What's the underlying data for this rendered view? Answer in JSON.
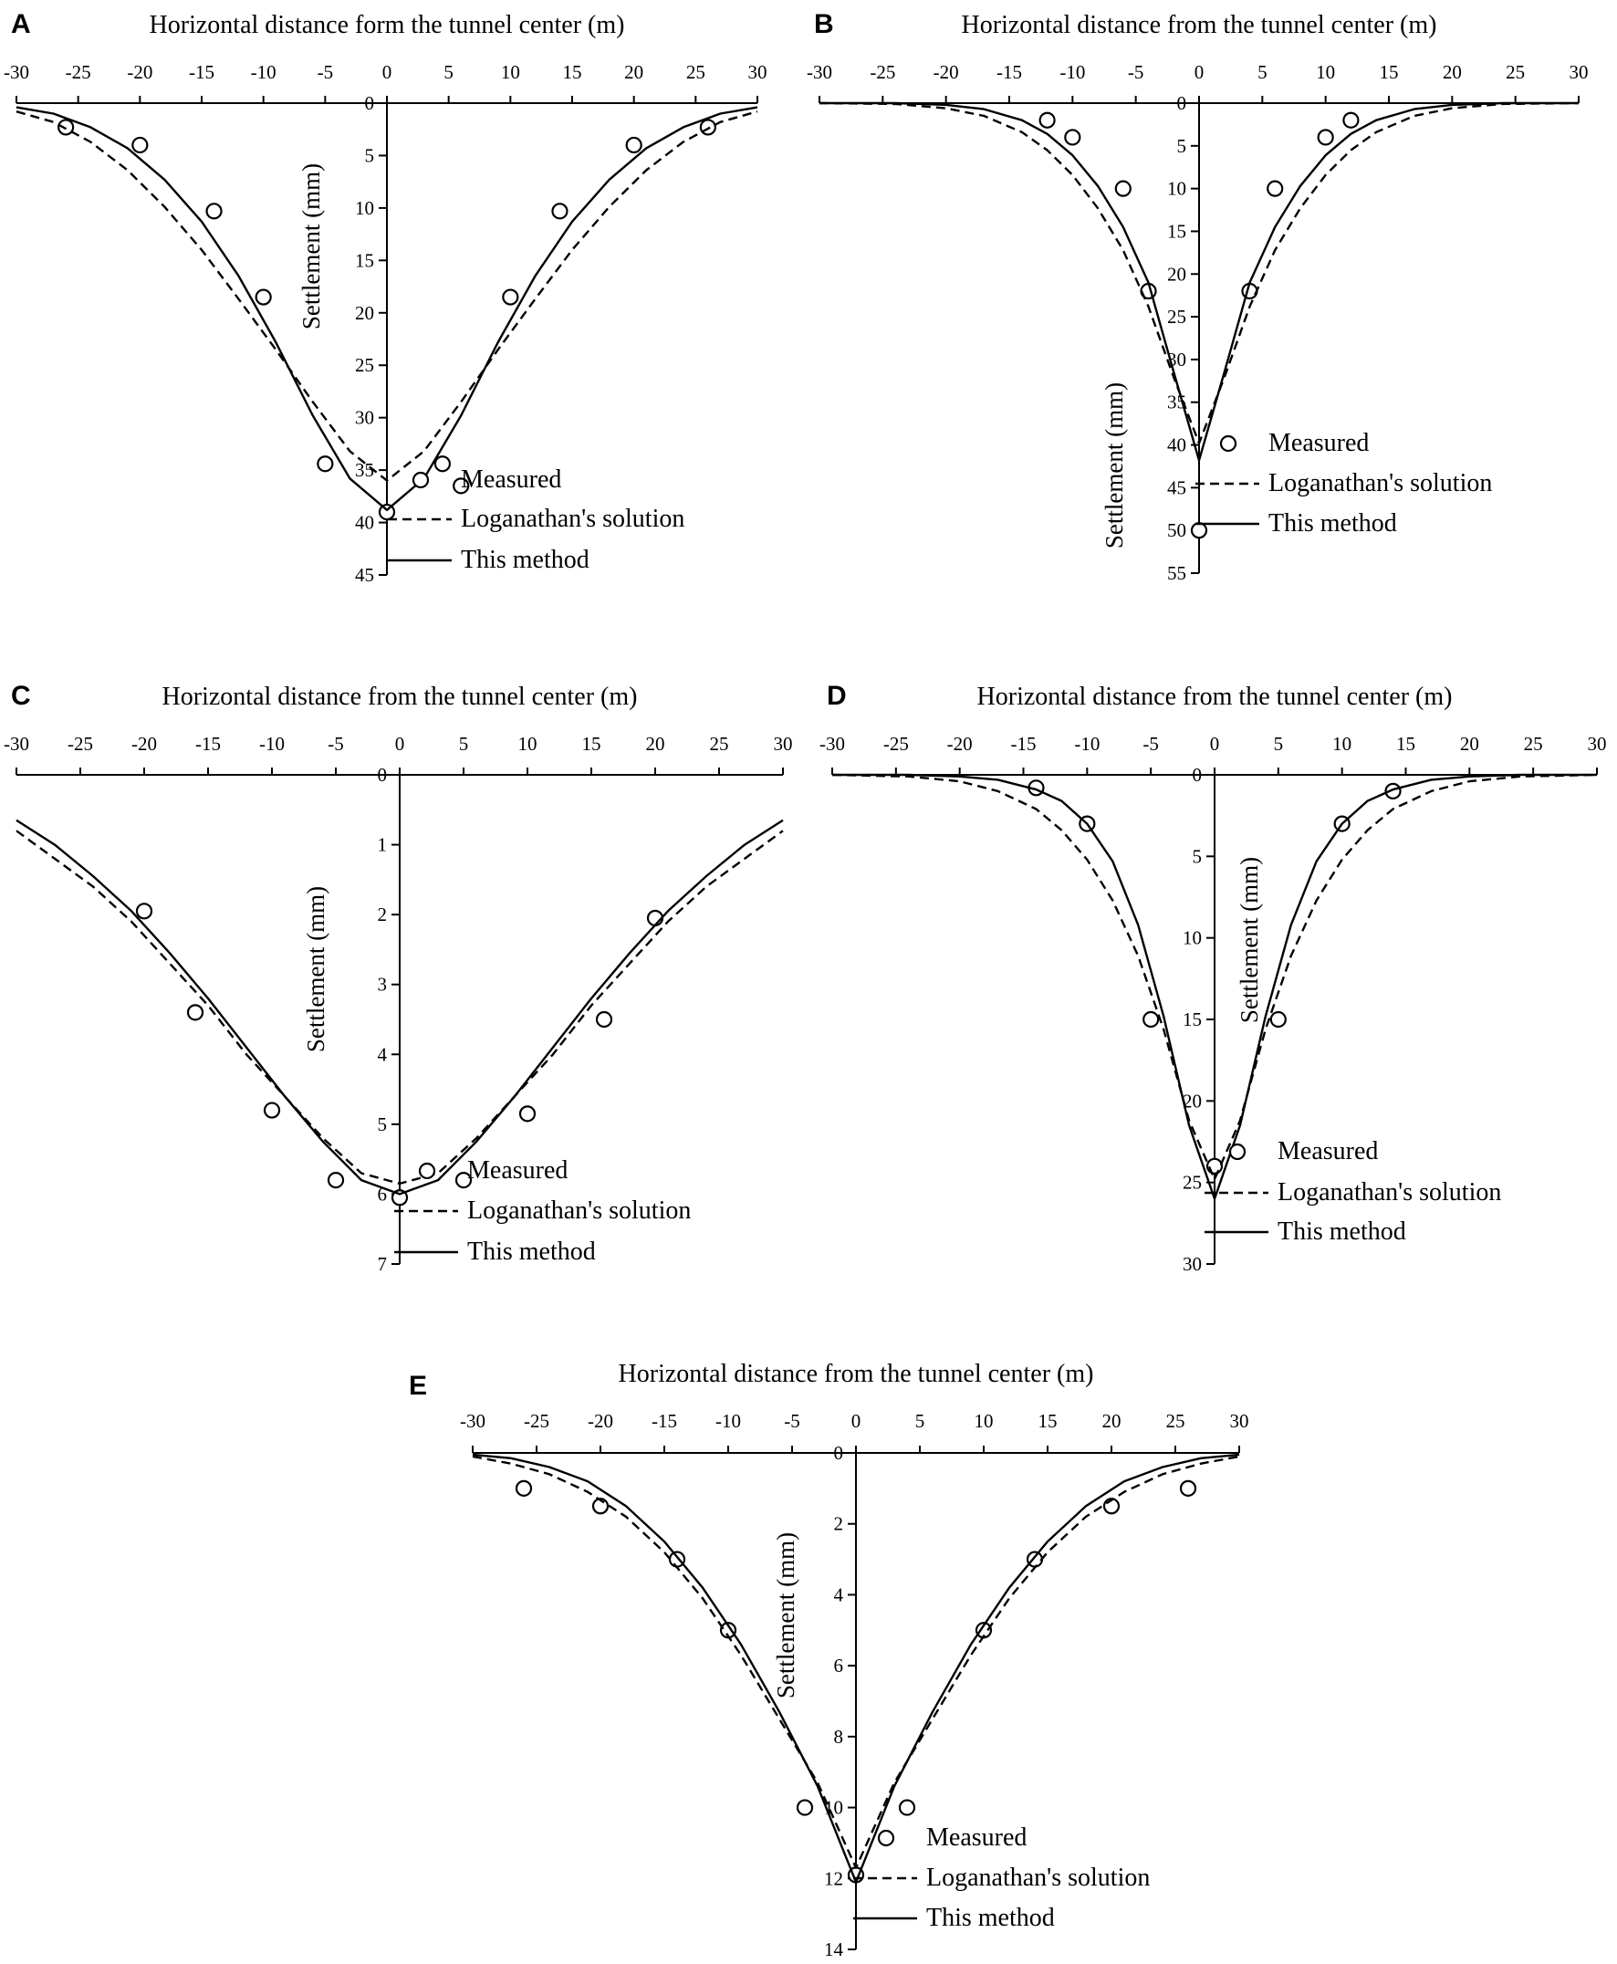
{
  "figure": {
    "legend_labels": {
      "measured": "Measured",
      "loganathan": "Loganathan's solution",
      "this_method": "This method"
    },
    "colors": {
      "ink": "#000000",
      "marker_fill": "#ffffff"
    }
  },
  "chart_data": [
    {
      "panel": "A",
      "type": "line",
      "title": "Horizontal distance form the tunnel center (m)",
      "xlabel": "Horizontal distance form the tunnel center (m)",
      "ylabel": "Settlement (mm)",
      "xlim": [
        -30,
        30
      ],
      "xticks": [
        -30,
        -25,
        -20,
        -15,
        -10,
        -5,
        0,
        5,
        10,
        15,
        20,
        25,
        30
      ],
      "ylim": [
        0,
        45
      ],
      "yticks": [
        0,
        5,
        10,
        15,
        20,
        25,
        30,
        35,
        40,
        45
      ],
      "y_inverted": true,
      "grid": false,
      "legend": "bottom-right",
      "series": [
        {
          "name": "Measured",
          "style": "markers",
          "x": [
            -26,
            -20,
            -14,
            -10,
            -5,
            0,
            4.5,
            6,
            10,
            14,
            20,
            26
          ],
          "y": [
            2.3,
            4,
            10.3,
            18.5,
            34.4,
            39,
            34.4,
            36.5,
            18.5,
            10.3,
            4,
            2.3
          ]
        },
        {
          "name": "Loganathan's solution",
          "style": "dashed",
          "x": [
            -30,
            -27,
            -24,
            -21,
            -18,
            -15,
            -12,
            -9,
            -6,
            -3,
            0,
            3,
            6,
            9,
            12,
            15,
            18,
            21,
            24,
            27,
            30
          ],
          "y": [
            0.8,
            1.8,
            3.7,
            6.4,
            9.9,
            14.0,
            18.7,
            23.5,
            28.5,
            33.2,
            36.0,
            33.2,
            28.5,
            23.5,
            18.7,
            14.0,
            9.9,
            6.4,
            3.7,
            1.8,
            0.8
          ]
        },
        {
          "name": "This method",
          "style": "solid",
          "x": [
            -30,
            -27,
            -24,
            -21,
            -18,
            -15,
            -12,
            -9,
            -6,
            -3,
            0,
            3,
            6,
            9,
            12,
            15,
            18,
            21,
            24,
            27,
            30
          ],
          "y": [
            0.4,
            1.0,
            2.3,
            4.3,
            7.3,
            11.3,
            16.5,
            22.8,
            29.8,
            35.8,
            38.8,
            35.8,
            29.8,
            22.8,
            16.5,
            11.3,
            7.3,
            4.3,
            2.3,
            1.0,
            0.4
          ]
        }
      ]
    },
    {
      "panel": "B",
      "type": "line",
      "title": "Horizontal distance from the tunnel center (m)",
      "xlabel": "Horizontal distance from the tunnel center (m)",
      "ylabel": "Settlement (mm)",
      "xlim": [
        -30,
        30
      ],
      "xticks": [
        -30,
        -25,
        -20,
        -15,
        -10,
        -5,
        0,
        5,
        10,
        15,
        20,
        25,
        30
      ],
      "ylim": [
        0,
        55
      ],
      "yticks": [
        0,
        5,
        10,
        15,
        20,
        25,
        30,
        35,
        40,
        45,
        50,
        55
      ],
      "y_inverted": true,
      "grid": false,
      "legend": "bottom-right",
      "series": [
        {
          "name": "Measured",
          "style": "markers",
          "x": [
            -12,
            -10,
            -6,
            -4,
            0,
            4,
            6,
            10,
            12
          ],
          "y": [
            2,
            4,
            10,
            22,
            50,
            22,
            10,
            4,
            2
          ]
        },
        {
          "name": "Loganathan's solution",
          "style": "dashed",
          "x": [
            -30,
            -24,
            -20,
            -17,
            -14,
            -12,
            -10,
            -8,
            -6,
            -4,
            -2,
            0,
            2,
            4,
            6,
            8,
            10,
            12,
            14,
            17,
            20,
            24,
            30
          ],
          "y": [
            0.0,
            0.1,
            0.6,
            1.5,
            3.4,
            5.5,
            8.4,
            12.3,
            17.2,
            23.8,
            32.1,
            39.8,
            32.1,
            23.8,
            17.2,
            12.3,
            8.4,
            5.5,
            3.4,
            1.5,
            0.6,
            0.1,
            0.0
          ]
        },
        {
          "name": "This method",
          "style": "solid",
          "x": [
            -30,
            -24,
            -20,
            -17,
            -14,
            -12,
            -10,
            -8,
            -6,
            -4,
            -2,
            0,
            2,
            4,
            6,
            8,
            10,
            12,
            14,
            17,
            20,
            24,
            30
          ],
          "y": [
            0.0,
            0.0,
            0.2,
            0.7,
            2.0,
            3.6,
            6.1,
            9.7,
            14.5,
            21.0,
            31.5,
            41.8,
            31.5,
            21.0,
            14.5,
            9.7,
            6.1,
            3.6,
            2.0,
            0.7,
            0.2,
            0.0,
            0.0
          ]
        }
      ]
    },
    {
      "panel": "C",
      "type": "line",
      "title": "Horizontal distance from the tunnel center (m)",
      "xlabel": "Horizontal distance from the tunnel center (m)",
      "ylabel": "Settlement (mm)",
      "xlim": [
        -30,
        30
      ],
      "xticks": [
        -30,
        -25,
        -20,
        -15,
        -10,
        -5,
        0,
        5,
        10,
        15,
        20,
        25,
        30
      ],
      "ylim": [
        0,
        7
      ],
      "yticks": [
        0,
        1,
        2,
        3,
        4,
        5,
        6,
        7
      ],
      "y_inverted": true,
      "grid": false,
      "legend": "bottom-right",
      "series": [
        {
          "name": "Measured",
          "style": "markers",
          "x": [
            -20,
            -16,
            -10,
            -5,
            0,
            5,
            10,
            16,
            20
          ],
          "y": [
            1.95,
            3.4,
            4.8,
            5.8,
            6.05,
            5.8,
            4.85,
            3.5,
            2.05
          ]
        },
        {
          "name": "Loganathan's solution",
          "style": "dashed",
          "x": [
            -30,
            -27,
            -24,
            -21,
            -18,
            -15,
            -12,
            -9,
            -6,
            -3,
            0,
            3,
            6,
            9,
            12,
            15,
            18,
            21,
            24,
            27,
            30
          ],
          "y": [
            0.8,
            1.2,
            1.6,
            2.1,
            2.7,
            3.3,
            4.0,
            4.6,
            5.2,
            5.7,
            5.85,
            5.7,
            5.2,
            4.6,
            4.0,
            3.3,
            2.7,
            2.1,
            1.6,
            1.2,
            0.8
          ]
        },
        {
          "name": "This method",
          "style": "solid",
          "x": [
            -30,
            -27,
            -24,
            -21,
            -18,
            -15,
            -12,
            -9,
            -6,
            -3,
            0,
            3,
            6,
            9,
            12,
            15,
            18,
            21,
            24,
            27,
            30
          ],
          "y": [
            0.65,
            1.0,
            1.45,
            1.95,
            2.55,
            3.2,
            3.9,
            4.6,
            5.25,
            5.8,
            6.0,
            5.8,
            5.25,
            4.6,
            3.9,
            3.2,
            2.55,
            1.95,
            1.45,
            1.0,
            0.65
          ]
        }
      ]
    },
    {
      "panel": "D",
      "type": "line",
      "title": "Horizontal distance from the tunnel center (m)",
      "xlabel": "Horizontal distance from the tunnel center (m)",
      "ylabel": "Settlement (mm)",
      "xlim": [
        -30,
        30
      ],
      "xticks": [
        -30,
        -25,
        -20,
        -15,
        -10,
        -5,
        0,
        5,
        10,
        15,
        20,
        25,
        30
      ],
      "ylim": [
        0,
        30
      ],
      "yticks": [
        0,
        5,
        10,
        15,
        20,
        25,
        30
      ],
      "y_inverted": true,
      "grid": false,
      "legend": "bottom-right",
      "series": [
        {
          "name": "Measured",
          "style": "markers",
          "x": [
            -14,
            -10,
            -5,
            0,
            5,
            10,
            14
          ],
          "y": [
            0.8,
            3,
            15,
            24,
            15,
            3,
            1
          ]
        },
        {
          "name": "Loganathan's solution",
          "style": "dashed",
          "x": [
            -30,
            -24,
            -20,
            -17,
            -14,
            -12,
            -10,
            -8,
            -6,
            -4,
            -2,
            0,
            2,
            4,
            6,
            8,
            10,
            12,
            14,
            17,
            20,
            24,
            30
          ],
          "y": [
            0.0,
            0.1,
            0.4,
            1.0,
            2.1,
            3.4,
            5.2,
            7.7,
            11.1,
            15.6,
            21.2,
            24.8,
            21.2,
            15.6,
            11.1,
            7.7,
            5.2,
            3.4,
            2.1,
            1.0,
            0.4,
            0.1,
            0.0
          ]
        },
        {
          "name": "This method",
          "style": "solid",
          "x": [
            -30,
            -24,
            -20,
            -17,
            -14,
            -12,
            -10,
            -8,
            -6,
            -4,
            -2,
            0,
            2,
            4,
            6,
            8,
            10,
            12,
            14,
            17,
            20,
            24,
            30
          ],
          "y": [
            0.0,
            0.0,
            0.1,
            0.3,
            0.9,
            1.6,
            3.0,
            5.3,
            9.2,
            14.8,
            21.5,
            26.0,
            21.5,
            14.8,
            9.2,
            5.3,
            3.0,
            1.6,
            0.9,
            0.3,
            0.1,
            0.0,
            0.0
          ]
        }
      ]
    },
    {
      "panel": "E",
      "type": "line",
      "title": "Horizontal distance from the tunnel center (m)",
      "xlabel": "Horizontal distance from the tunnel center (m)",
      "ylabel": "Settlement (mm)",
      "xlim": [
        -30,
        30
      ],
      "xticks": [
        -30,
        -25,
        -20,
        -15,
        -10,
        -5,
        0,
        5,
        10,
        15,
        20,
        25,
        30
      ],
      "ylim": [
        0,
        14
      ],
      "yticks": [
        0,
        2,
        4,
        6,
        8,
        10,
        12,
        14
      ],
      "y_inverted": true,
      "grid": false,
      "legend": "bottom-right",
      "series": [
        {
          "name": "Measured",
          "style": "markers",
          "x": [
            -26,
            -20,
            -14,
            -10,
            -4,
            0,
            4,
            10,
            14,
            20,
            26
          ],
          "y": [
            1,
            1.5,
            3,
            5,
            10,
            11.9,
            10,
            5,
            3,
            1.5,
            1
          ]
        },
        {
          "name": "Loganathan's solution",
          "style": "dashed",
          "x": [
            -30,
            -27,
            -24,
            -21,
            -18,
            -15,
            -12,
            -9,
            -6,
            -3,
            0,
            3,
            6,
            9,
            12,
            15,
            18,
            21,
            24,
            27,
            30
          ],
          "y": [
            0.1,
            0.3,
            0.6,
            1.1,
            1.8,
            2.8,
            4.1,
            5.7,
            7.5,
            9.3,
            11.7,
            9.3,
            7.5,
            5.7,
            4.1,
            2.8,
            1.8,
            1.1,
            0.6,
            0.3,
            0.1
          ]
        },
        {
          "name": "This method",
          "style": "solid",
          "x": [
            -30,
            -27,
            -24,
            -21,
            -18,
            -15,
            -12,
            -9,
            -6,
            -3,
            0,
            3,
            6,
            9,
            12,
            15,
            18,
            21,
            24,
            27,
            30
          ],
          "y": [
            0.05,
            0.15,
            0.4,
            0.8,
            1.5,
            2.5,
            3.8,
            5.4,
            7.3,
            9.4,
            12.1,
            9.4,
            7.3,
            5.4,
            3.8,
            2.5,
            1.5,
            0.8,
            0.4,
            0.15,
            0.05
          ]
        }
      ]
    }
  ]
}
